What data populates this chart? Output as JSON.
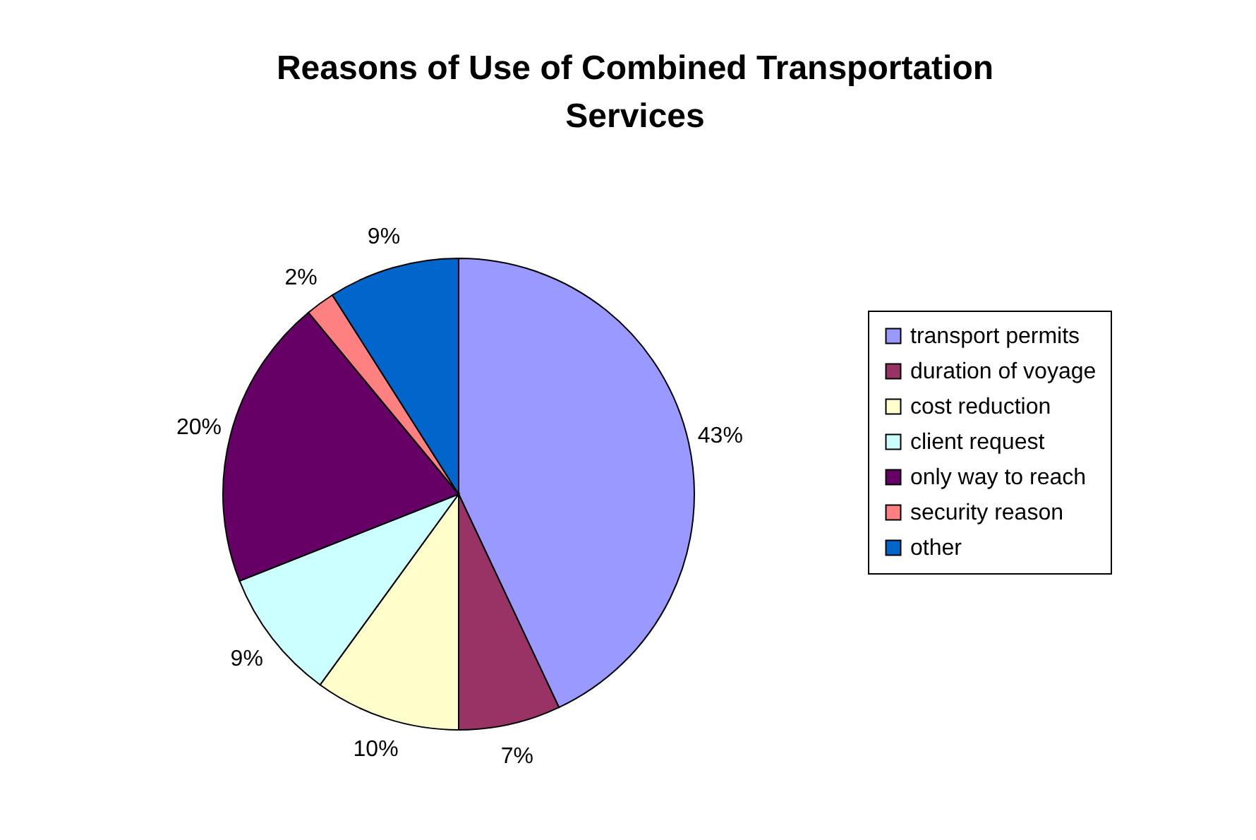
{
  "chart_data": {
    "type": "pie",
    "title": "Reasons of Use of Combined Transportation Services",
    "categories": [
      "transport permits",
      "duration of voyage",
      "cost reduction",
      "client request",
      "only way to reach",
      "security reason",
      "other"
    ],
    "values": [
      43,
      7,
      10,
      9,
      20,
      2,
      9
    ],
    "colors": [
      "#9999ff",
      "#993366",
      "#ffffcc",
      "#ccffff",
      "#660066",
      "#ff8080",
      "#0066cc"
    ],
    "value_labels": [
      "43%",
      "7%",
      "10%",
      "9%",
      "20%",
      "2%",
      "9%"
    ],
    "legend": "right"
  }
}
